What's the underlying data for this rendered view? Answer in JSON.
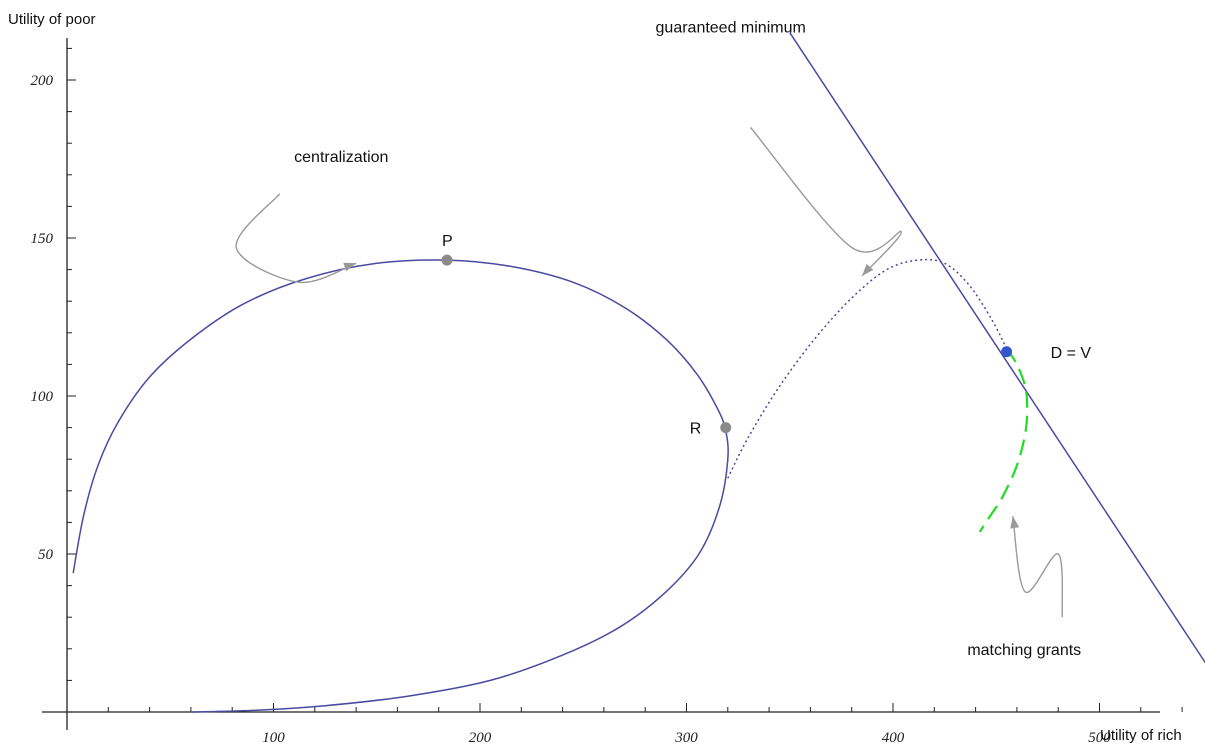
{
  "chart_data": {
    "type": "line",
    "xlabel": "Utility of rich",
    "ylabel": "Utility of poor",
    "xlim": [
      0,
      570
    ],
    "ylim": [
      0,
      215
    ],
    "x_ticks": [
      100,
      200,
      300,
      400,
      500
    ],
    "y_ticks": [
      50,
      100,
      150,
      200
    ],
    "grid": false,
    "colors": {
      "frontier": "#4a4aa0",
      "matching": "#22dd22",
      "arrow": "#999999",
      "point": "#8a8a8a",
      "dv_point": "#3355cc"
    },
    "series": [
      {
        "style": "solid",
        "color": "#4a4aa0",
        "points": [
          [
            3,
            44
          ],
          [
            8,
            62
          ],
          [
            15,
            78
          ],
          [
            25,
            92
          ],
          [
            40,
            106
          ],
          [
            60,
            118
          ],
          [
            85,
            129
          ],
          [
            115,
            137
          ],
          [
            150,
            142
          ],
          [
            184,
            143
          ],
          [
            215,
            141
          ],
          [
            245,
            136
          ],
          [
            270,
            128
          ],
          [
            290,
            118
          ],
          [
            305,
            107
          ],
          [
            315,
            96
          ],
          [
            319,
            89
          ],
          [
            320,
            80
          ],
          [
            316,
            65
          ],
          [
            306,
            50
          ],
          [
            290,
            38
          ],
          [
            268,
            27
          ],
          [
            240,
            18
          ],
          [
            205,
            10
          ],
          [
            165,
            5
          ],
          [
            125,
            2
          ],
          [
            90,
            0.5
          ],
          [
            60,
            0
          ]
        ]
      },
      {
        "style": "dotted",
        "color": "#4a4aa0",
        "points": [
          [
            320,
            74
          ],
          [
            330,
            87
          ],
          [
            345,
            103
          ],
          [
            362,
            118
          ],
          [
            380,
            131
          ],
          [
            397,
            140
          ],
          [
            412,
            143
          ],
          [
            425,
            142
          ],
          [
            437,
            135
          ],
          [
            448,
            124
          ],
          [
            455,
            115
          ]
        ]
      },
      {
        "style": "solid",
        "color": "#4a4aa0",
        "points": [
          [
            350,
            215
          ],
          [
            567,
            0
          ]
        ]
      },
      {
        "style": "dashed",
        "color": "#22dd22",
        "points": [
          [
            455,
            115
          ],
          [
            460,
            110
          ],
          [
            464,
            103
          ],
          [
            465,
            96
          ],
          [
            464,
            88
          ],
          [
            460,
            78
          ],
          [
            453,
            68
          ],
          [
            447,
            62
          ],
          [
            442,
            57
          ]
        ]
      }
    ],
    "points": [
      {
        "label": "P",
        "x": 184,
        "y": 143
      },
      {
        "label": "R",
        "x": 319,
        "y": 90
      },
      {
        "label": "D = V",
        "x": 455,
        "y": 114
      }
    ],
    "annotations": [
      {
        "text": "centralization",
        "x": 110,
        "y": 174,
        "arrow_path": [
          [
            103,
            164
          ],
          [
            82,
            147
          ],
          [
            112,
            136
          ],
          [
            140,
            142
          ]
        ]
      },
      {
        "text": "guaranteed minimum",
        "x": 285,
        "y": 215,
        "arrow_path": [
          [
            331,
            185
          ],
          [
            380,
            147
          ],
          [
            404,
            152
          ],
          [
            385,
            138
          ]
        ]
      },
      {
        "text": "matching grants",
        "x": 436,
        "y": 18,
        "arrow_path": [
          [
            482,
            30
          ],
          [
            480,
            50
          ],
          [
            464,
            38
          ],
          [
            458,
            62
          ]
        ]
      }
    ]
  }
}
